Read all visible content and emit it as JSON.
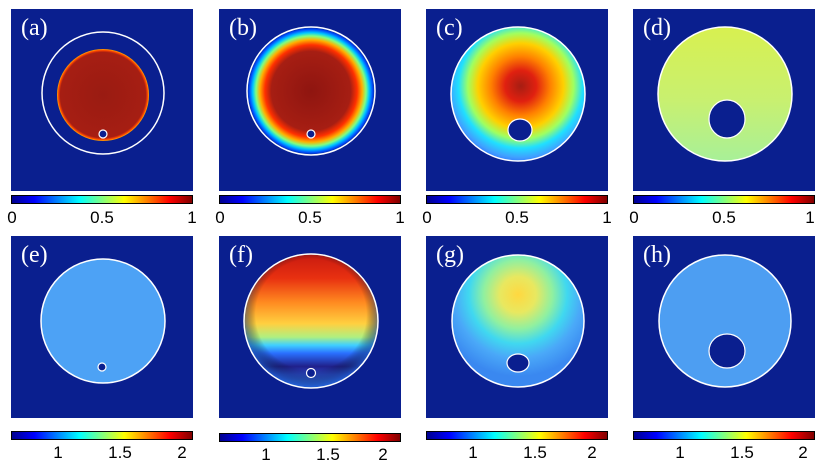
{
  "colors": {
    "background": "#0a1f8f",
    "outline": "#ffffff",
    "colormap": [
      "#00008f",
      "#0000ff",
      "#0080ff",
      "#00ffff",
      "#80ff80",
      "#ffff00",
      "#ff8000",
      "#ff0000",
      "#800000"
    ]
  },
  "chart_data": [
    {
      "type": "heatmap",
      "panel": "(a)",
      "field": "uniform",
      "level": 0.95,
      "hole_radius": 0.05,
      "colorbar": {
        "range": [
          0,
          1
        ],
        "ticks": [
          "0",
          "0.5",
          "1"
        ]
      }
    },
    {
      "type": "heatmap",
      "panel": "(b)",
      "field": "disk-diffused",
      "level": 0.95,
      "colorbar": {
        "range": [
          0,
          1
        ],
        "ticks": [
          "0",
          "0.5",
          "1"
        ]
      }
    },
    {
      "type": "heatmap",
      "panel": "(c)",
      "field": "radial-gradient",
      "peak": 0.9,
      "colorbar": {
        "range": [
          0,
          1
        ],
        "ticks": [
          "0",
          "0.5",
          "1"
        ]
      }
    },
    {
      "type": "heatmap",
      "panel": "(d)",
      "field": "uniform",
      "level": 0.6,
      "colorbar": {
        "range": [
          0,
          1
        ],
        "ticks": [
          "0",
          "0.5",
          "1"
        ]
      }
    },
    {
      "type": "heatmap",
      "panel": "(e)",
      "field": "uniform",
      "level": 1.0,
      "colorbar": {
        "range": [
          0.6,
          2.2
        ],
        "ticks": [
          "1",
          "1.5",
          "2"
        ]
      }
    },
    {
      "type": "heatmap",
      "panel": "(f)",
      "field": "vertical-gradient",
      "peak": 2.0,
      "colorbar": {
        "range": [
          0.6,
          2.2
        ],
        "ticks": [
          "1",
          "1.5",
          "2"
        ]
      }
    },
    {
      "type": "heatmap",
      "panel": "(g)",
      "field": "soft-gradient",
      "peak": 1.45,
      "colorbar": {
        "range": [
          0.6,
          2.2
        ],
        "ticks": [
          "1",
          "1.5",
          "2"
        ]
      }
    },
    {
      "type": "heatmap",
      "panel": "(h)",
      "field": "uniform",
      "level": 1.0,
      "colorbar": {
        "range": [
          0.6,
          2.2
        ],
        "ticks": [
          "1",
          "1.5",
          "2"
        ]
      }
    }
  ]
}
